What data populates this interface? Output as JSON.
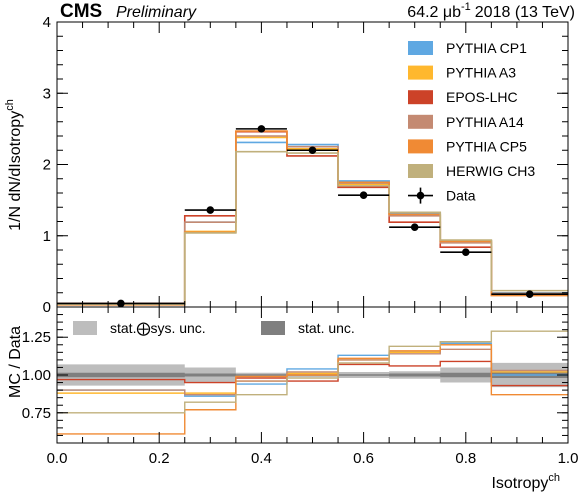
{
  "header": {
    "experiment": "CMS",
    "status": "Preliminary",
    "luminosity": "64.2 μb",
    "lumi_exponent": "-1",
    "run": "2018 (13 TeV)"
  },
  "axes": {
    "xlabel_main": "Isotropy",
    "xlabel_sup": "ch",
    "ylabel_top": "1/N dN/dIsotropy",
    "ylabel_top_sup": "ch",
    "ylabel_ratio": "MC / Data"
  },
  "legend": {
    "ratio_band_total": "stat.⨁sys. unc.",
    "ratio_band_stat": "stat. unc."
  },
  "chart_data": {
    "type": "line",
    "x_edges": [
      0.0,
      0.25,
      0.35,
      0.45,
      0.55,
      0.65,
      0.75,
      0.85,
      1.0
    ],
    "xlim": [
      0.0,
      1.0
    ],
    "x_ticks": [
      "0.0",
      "0.2",
      "0.4",
      "0.6",
      "0.8",
      "1.0"
    ],
    "x_tick_values": [
      0.0,
      0.2,
      0.4,
      0.6,
      0.8,
      1.0
    ],
    "top_panel": {
      "ylim": [
        0,
        4
      ],
      "y_ticks": [
        "0",
        "1",
        "2",
        "3",
        "4"
      ],
      "y_tick_values": [
        0,
        1,
        2,
        3,
        4
      ],
      "legend_placement": "top-right",
      "data": {
        "name": "Data",
        "x": [
          0.125,
          0.3,
          0.4,
          0.5,
          0.6,
          0.7,
          0.8,
          0.925
        ],
        "y": [
          0.05,
          1.36,
          2.5,
          2.2,
          1.57,
          1.12,
          0.77,
          0.18
        ],
        "color": "#000000"
      },
      "series": [
        {
          "name": "PYTHIA CP1",
          "color": "#5fa8e2",
          "values": [
            0.04,
            1.19,
            2.31,
            2.28,
            1.77,
            1.32,
            0.93,
            0.2
          ]
        },
        {
          "name": "PYTHIA A3",
          "color": "#ffb82e",
          "values": [
            0.04,
            1.06,
            2.38,
            2.22,
            1.72,
            1.3,
            0.93,
            0.19
          ]
        },
        {
          "name": "EPOS-LHC",
          "color": "#cc4228",
          "values": [
            0.05,
            1.28,
            2.46,
            2.12,
            1.68,
            1.19,
            0.84,
            0.17
          ]
        },
        {
          "name": "PYTHIA A14",
          "color": "#c48a72",
          "values": [
            0.04,
            1.19,
            2.4,
            2.25,
            1.74,
            1.28,
            0.9,
            0.19
          ]
        },
        {
          "name": "PYTHIA CP5",
          "color": "#f08a34",
          "values": [
            0.03,
            1.05,
            2.47,
            2.2,
            1.75,
            1.3,
            0.92,
            0.16
          ]
        },
        {
          "name": "HERWIG CH3",
          "color": "#c0b07c",
          "values": [
            0.04,
            1.04,
            2.18,
            2.16,
            1.7,
            1.33,
            0.94,
            0.23
          ]
        }
      ]
    },
    "ratio_panel": {
      "ylim": [
        0.55,
        1.45
      ],
      "y_ticks": [
        "0.75",
        "1.00",
        "1.25"
      ],
      "y_tick_values": [
        0.75,
        1.0,
        1.25
      ],
      "band_total": {
        "color": "#bdbdbd",
        "lower": [
          0.93,
          0.95,
          0.985,
          0.985,
          0.98,
          0.975,
          0.95,
          0.92
        ],
        "upper": [
          1.07,
          1.05,
          1.015,
          1.015,
          1.02,
          1.025,
          1.05,
          1.08
        ]
      },
      "band_stat": {
        "color": "#7f7f7f",
        "lower": [
          0.985,
          0.99,
          0.995,
          0.995,
          0.995,
          0.99,
          0.985,
          0.98
        ],
        "upper": [
          1.015,
          1.01,
          1.005,
          1.005,
          1.005,
          1.01,
          1.015,
          1.02
        ]
      },
      "series": [
        {
          "name": "PYTHIA CP1",
          "color": "#5fa8e2",
          "values": [
            0.9,
            0.86,
            0.94,
            1.04,
            1.13,
            1.15,
            1.21,
            1.0
          ]
        },
        {
          "name": "PYTHIA A3",
          "color": "#ffb82e",
          "values": [
            0.88,
            0.88,
            0.96,
            1.01,
            1.1,
            1.15,
            1.2,
            1.02
          ]
        },
        {
          "name": "EPOS-LHC",
          "color": "#cc4228",
          "values": [
            0.97,
            0.95,
            0.98,
            0.96,
            1.07,
            1.06,
            1.09,
            0.93
          ]
        },
        {
          "name": "PYTHIA A14",
          "color": "#c48a72",
          "values": [
            0.9,
            0.87,
            0.96,
            1.02,
            1.1,
            1.14,
            1.17,
            1.03
          ]
        },
        {
          "name": "PYTHIA CP5",
          "color": "#f08a34",
          "values": [
            0.61,
            0.77,
            0.99,
            1.0,
            1.11,
            1.16,
            1.2,
            0.87
          ]
        },
        {
          "name": "HERWIG CH3",
          "color": "#c0b07c",
          "values": [
            0.75,
            0.82,
            0.87,
            0.98,
            1.08,
            1.19,
            1.22,
            1.29
          ]
        }
      ]
    }
  }
}
